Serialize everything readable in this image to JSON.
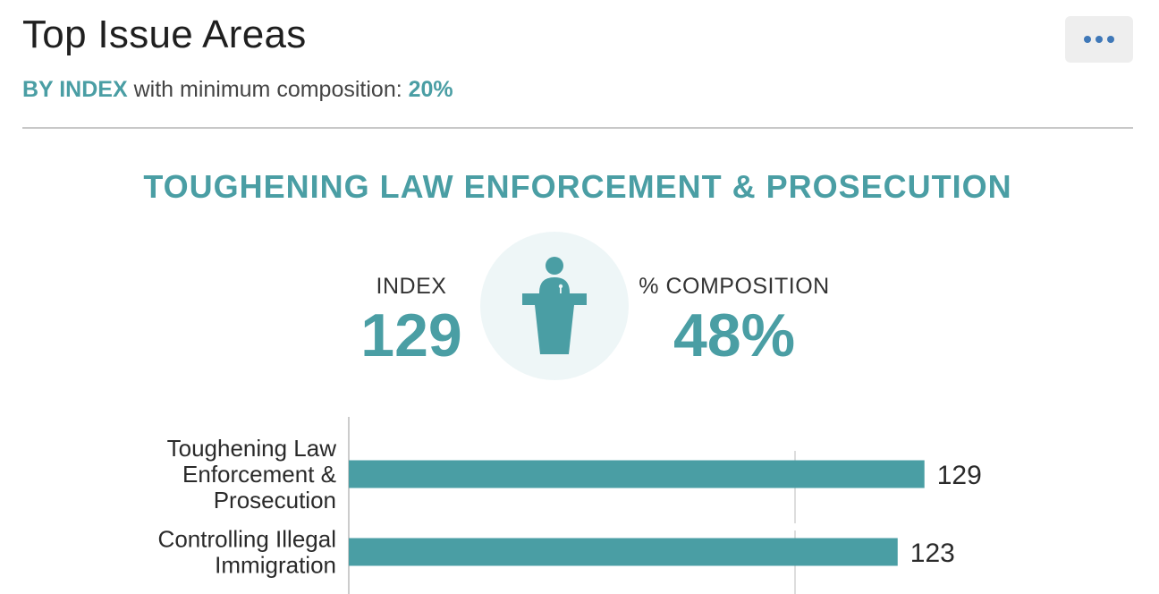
{
  "header": {
    "title": "Top Issue Areas",
    "menu_icon": "more-horizontal-icon"
  },
  "subtitle": {
    "prefix": "BY INDEX",
    "middle": " with minimum composition: ",
    "value": "20%"
  },
  "featured": {
    "heading": "TOUGHENING LAW ENFORCEMENT & PROSECUTION",
    "icon": "speaker-podium-icon",
    "index_label": "INDEX",
    "index_value": "129",
    "composition_label": "% COMPOSITION",
    "composition_value": "48%"
  },
  "colors": {
    "accent": "#4a9ea4",
    "circle_bg": "#eef6f7",
    "menu_dots": "#3f78b8"
  },
  "chart_data": {
    "type": "bar",
    "orientation": "horizontal",
    "categories": [
      [
        "Toughening Law",
        "Enforcement &",
        "Prosecution"
      ],
      [
        "Controlling Illegal",
        "Immigration"
      ]
    ],
    "values": [
      129,
      123
    ],
    "value_labels": [
      "129",
      "123"
    ],
    "xlim": [
      0,
      200
    ],
    "reference_line": 100,
    "grid": false
  }
}
